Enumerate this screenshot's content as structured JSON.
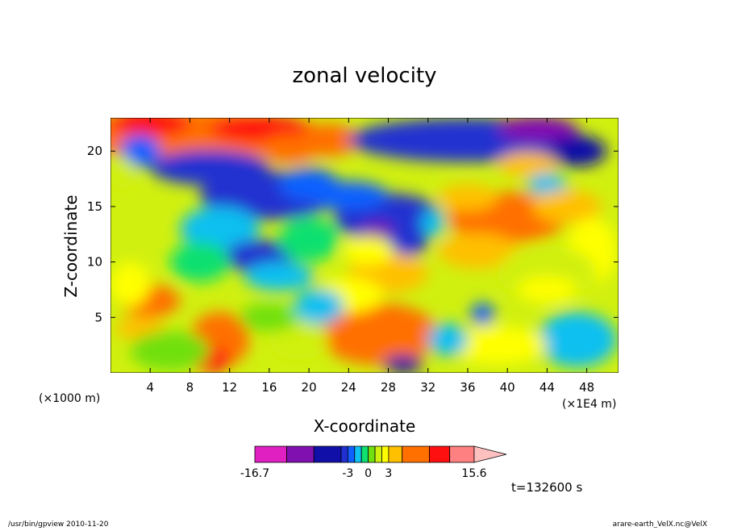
{
  "chart_data": {
    "type": "heatmap",
    "title": "zonal velocity",
    "xlabel": "X-coordinate",
    "ylabel": "Z-coordinate",
    "x_unit_left": "(×1000 m)",
    "x_unit_right": "(×1E4 m)",
    "xlim": [
      0,
      51.2
    ],
    "ylim": [
      0,
      23
    ],
    "x_ticks": [
      4,
      8,
      12,
      16,
      20,
      24,
      28,
      32,
      36,
      40,
      44,
      48
    ],
    "y_ticks": [
      5,
      10,
      15,
      20
    ],
    "colorbar": {
      "labels": [
        {
          "text": "-16.7",
          "value": -16.7
        },
        {
          "text": "-3",
          "value": -3
        },
        {
          "text": "0",
          "value": 0
        },
        {
          "text": "3",
          "value": 3
        },
        {
          "text": "15.6",
          "value": 15.6
        }
      ],
      "levels": [
        -16.7,
        -12,
        -8,
        -4,
        -3,
        -2,
        -1,
        0,
        1,
        2,
        3,
        5,
        9,
        12,
        15.6
      ],
      "colors": [
        "#e020c0",
        "#8010b0",
        "#1010a8",
        "#2030d0",
        "#1060ff",
        "#10c0f0",
        "#10e070",
        "#70e010",
        "#d0f010",
        "#ffff00",
        "#ffc000",
        "#ff7000",
        "#ff1010",
        "#ff8080",
        "#ffc0c0"
      ]
    },
    "time_label": "t=132600 s"
  },
  "footer": {
    "left": "/usr/bin/gpview   2010-11-20",
    "right": "arare-earth_VelX.nc@VelX"
  }
}
